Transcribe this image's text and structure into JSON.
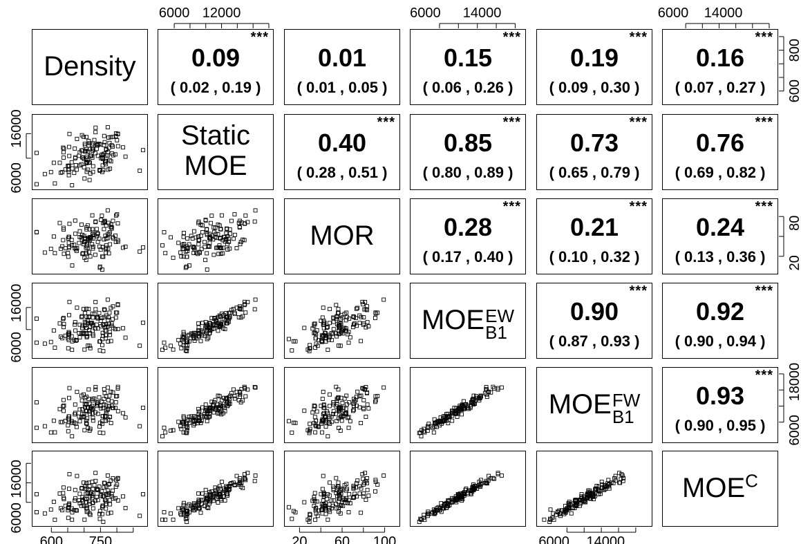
{
  "chart_data": {
    "type": "scatter",
    "variables": [
      {
        "key": "density",
        "label_main": "Density",
        "label_sup": "",
        "label_sub": ""
      },
      {
        "key": "static_moe",
        "label_main": "Static MOE",
        "label_sup": "",
        "label_sub": ""
      },
      {
        "key": "mor",
        "label_main": "MOR",
        "label_sup": "",
        "label_sub": ""
      },
      {
        "key": "moe_b1_ew",
        "label_main": "MOE",
        "label_sup": "EW",
        "label_sub": "B1"
      },
      {
        "key": "moe_b1_fw",
        "label_main": "MOE",
        "label_sup": "FW",
        "label_sub": "B1"
      },
      {
        "key": "moe_c",
        "label_main": "MOE",
        "label_sup": "C",
        "label_sub": ""
      }
    ],
    "ranges": {
      "density": [
        555,
        880
      ],
      "static_moe": [
        4500,
        18000
      ],
      "mor": [
        10,
        110
      ],
      "moe_b1_ew": [
        4500,
        19500
      ],
      "moe_b1_fw": [
        4000,
        20500
      ],
      "moe_c": [
        5000,
        22000
      ]
    },
    "axis_ticks": {
      "top": [
        {
          "panel_col": 1,
          "labels": [
            "6000",
            "12000"
          ],
          "values": [
            6000,
            12000
          ]
        },
        {
          "panel_col": 3,
          "labels": [
            "6000",
            "14000"
          ],
          "values": [
            6000,
            14000
          ]
        },
        {
          "panel_col": 5,
          "labels": [
            "6000",
            "14000"
          ],
          "values": [
            6000,
            14000
          ]
        }
      ],
      "bottom": [
        {
          "panel_col": 0,
          "labels": [
            "600",
            "750"
          ],
          "values": [
            600,
            750
          ]
        },
        {
          "panel_col": 2,
          "labels": [
            "20",
            "60",
            "100"
          ],
          "values": [
            20,
            60,
            100
          ]
        },
        {
          "panel_col": 4,
          "labels": [
            "6000",
            "14000"
          ],
          "values": [
            6000,
            14000
          ]
        }
      ],
      "left": [
        {
          "panel_row": 1,
          "labels": [
            "6000",
            "16000"
          ],
          "values": [
            6000,
            16000
          ]
        },
        {
          "panel_row": 3,
          "labels": [
            "6000",
            "16000"
          ],
          "values": [
            6000,
            16000
          ]
        },
        {
          "panel_row": 5,
          "labels": [
            "6000",
            "16000"
          ],
          "values": [
            6000,
            16000
          ]
        }
      ],
      "right": [
        {
          "panel_row": 0,
          "labels": [
            "600",
            "800"
          ],
          "values": [
            600,
            800
          ]
        },
        {
          "panel_row": 2,
          "labels": [
            "20",
            "80"
          ],
          "values": [
            20,
            80
          ]
        },
        {
          "panel_row": 4,
          "labels": [
            "6000",
            "18000"
          ],
          "values": [
            6000,
            18000
          ]
        }
      ]
    },
    "correlations": [
      {
        "row": 0,
        "col": 1,
        "value": "0.09",
        "ci": "( 0.02 , 0.19 )",
        "sig": "***"
      },
      {
        "row": 0,
        "col": 2,
        "value": "0.01",
        "ci": "( 0.01 , 0.05 )",
        "sig": ""
      },
      {
        "row": 0,
        "col": 3,
        "value": "0.15",
        "ci": "( 0.06 , 0.26 )",
        "sig": "***"
      },
      {
        "row": 0,
        "col": 4,
        "value": "0.19",
        "ci": "( 0.09 , 0.30 )",
        "sig": "***"
      },
      {
        "row": 0,
        "col": 5,
        "value": "0.16",
        "ci": "( 0.07 , 0.27 )",
        "sig": "***"
      },
      {
        "row": 1,
        "col": 2,
        "value": "0.40",
        "ci": "( 0.28 , 0.51 )",
        "sig": "***"
      },
      {
        "row": 1,
        "col": 3,
        "value": "0.85",
        "ci": "( 0.80 , 0.89 )",
        "sig": "***"
      },
      {
        "row": 1,
        "col": 4,
        "value": "0.73",
        "ci": "( 0.65 , 0.79 )",
        "sig": "***"
      },
      {
        "row": 1,
        "col": 5,
        "value": "0.76",
        "ci": "( 0.69 , 0.82 )",
        "sig": "***"
      },
      {
        "row": 2,
        "col": 3,
        "value": "0.28",
        "ci": "( 0.17 , 0.40 )",
        "sig": "***"
      },
      {
        "row": 2,
        "col": 4,
        "value": "0.21",
        "ci": "( 0.10 , 0.32 )",
        "sig": "***"
      },
      {
        "row": 2,
        "col": 5,
        "value": "0.24",
        "ci": "( 0.13 , 0.36 )",
        "sig": "***"
      },
      {
        "row": 3,
        "col": 4,
        "value": "0.90",
        "ci": "( 0.87 , 0.93 )",
        "sig": "***"
      },
      {
        "row": 3,
        "col": 5,
        "value": "0.92",
        "ci": "( 0.90 , 0.94 )",
        "sig": "***"
      },
      {
        "row": 4,
        "col": 5,
        "value": "0.93",
        "ci": "( 0.90 , 0.95 )",
        "sig": "***"
      }
    ],
    "scatter_points_per_panel": 140,
    "marker": "open-square",
    "colors": {
      "marker": "#000000",
      "frame": "#000000",
      "background": "#ffffff"
    }
  }
}
